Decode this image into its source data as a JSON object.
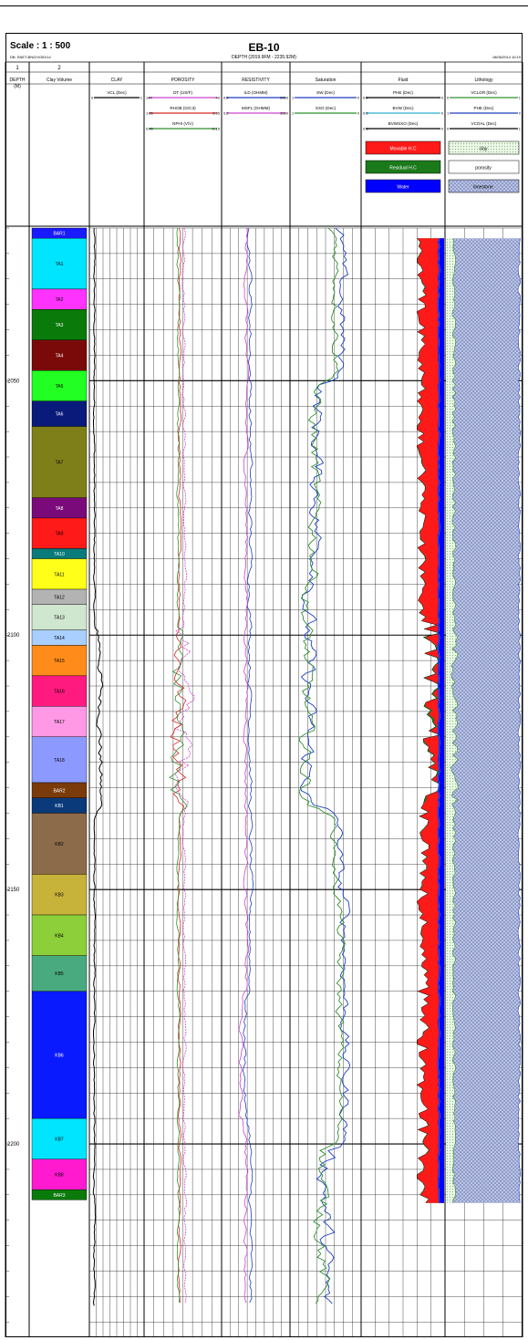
{
  "header": {
    "scale": "Scale : 1 : 500",
    "sub_left": "DB: SNET-BNG/VOID/14",
    "well": "EB-10",
    "depth_range": "DEPTH (2019.9FM - 2235.92M)",
    "date": "18/06/2014 10:19"
  },
  "tracks": [
    {
      "num": "1",
      "title": "DEPTH\n(M)"
    },
    {
      "num": "2",
      "title": "Clay Volume"
    },
    {
      "num": "",
      "title": "CLAY"
    },
    {
      "num": "",
      "title": "POROSITY"
    },
    {
      "num": "",
      "title": "RESISTIVITY"
    },
    {
      "num": "",
      "title": "Saturation"
    },
    {
      "num": "",
      "title": "Fluid"
    },
    {
      "num": "",
      "title": "Lithology"
    }
  ],
  "curves": {
    "clay": [
      {
        "label": "VCL (Dec)",
        "left": "0",
        "right": "1",
        "color": "#000000"
      }
    ],
    "porosity": [
      {
        "label": "DT (US/F)",
        "left": "140",
        "right": "40",
        "color": "#cc44cc"
      },
      {
        "label": "RHOB (G/C3)",
        "left": "1.95",
        "right": "2.95",
        "color": "#d62828"
      },
      {
        "label": "NPHI (V/V)",
        "left": "0.45",
        "right": "-0.15",
        "color": "#2f8f2f"
      }
    ],
    "resistivity": [
      {
        "label": "ILD (OHMM)",
        "left": "0.2",
        "right": "2000",
        "color": "#1f3fbf"
      },
      {
        "label": "MSFL (OHMM)",
        "left": "0.2",
        "right": "2000",
        "color": "#cc44cc"
      }
    ],
    "saturation": [
      {
        "label": "SW (Dec)",
        "left": "1",
        "right": "0",
        "color": "#1f3fbf"
      },
      {
        "label": "SXO (Dec)",
        "left": "1",
        "right": "0",
        "color": "#2f8f2f"
      }
    ],
    "fluid": [
      {
        "label": "PHE (Dec)",
        "left": "0.5",
        "right": "0",
        "color": "#000000"
      },
      {
        "label": "BVW (Dec)",
        "left": "0.5",
        "right": "0",
        "color": "#2ab0d0"
      },
      {
        "label": "BVWSXO (Dec)",
        "left": "0.5",
        "right": "0",
        "color": "#000000"
      }
    ],
    "lithology": [
      {
        "label": "VCLGR (Dec)",
        "left": "0",
        "right": "1",
        "color": "#2f8f2f"
      },
      {
        "label": "PHE (Dec)",
        "left": "1",
        "right": "0",
        "color": "#1f3fbf"
      },
      {
        "label": "VCOAL (Dec)",
        "left": "0",
        "right": "1",
        "color": "#000000"
      }
    ]
  },
  "fluid_legend": [
    {
      "label": "Movable H.C",
      "color": "#ff1a1a"
    },
    {
      "label": "Residual H.C",
      "color": "#1a7a1a"
    },
    {
      "label": "Water",
      "color": "#0000ff"
    }
  ],
  "lithology_legend": [
    {
      "label": "clay",
      "fill": "#d9ecd2"
    },
    {
      "label": "porosity",
      "fill": "#ffffff"
    },
    {
      "label": "limestone",
      "fill": "#8f9ccc"
    }
  ],
  "chart_data": {
    "type": "well-log",
    "depth_unit": "M",
    "depth_ticks": [
      2050,
      2100,
      2150,
      2200
    ],
    "depth_range": [
      2020,
      2238
    ],
    "zones": [
      {
        "name": "BAR1",
        "top": 2020,
        "base": 2022,
        "color": "#1a1aff"
      },
      {
        "name": "TA1",
        "top": 2022,
        "base": 2032,
        "color": "#00e5ff"
      },
      {
        "name": "TA2",
        "top": 2032,
        "base": 2036,
        "color": "#ff33ff"
      },
      {
        "name": "TA3",
        "top": 2036,
        "base": 2042,
        "color": "#0a7a0a"
      },
      {
        "name": "TA4",
        "top": 2042,
        "base": 2048,
        "color": "#7a0a0a"
      },
      {
        "name": "TA5",
        "top": 2048,
        "base": 2054,
        "color": "#22ff22"
      },
      {
        "name": "TA6",
        "top": 2054,
        "base": 2059,
        "color": "#0a1a7a"
      },
      {
        "name": "TA7",
        "top": 2059,
        "base": 2073,
        "color": "#7f7f1a"
      },
      {
        "name": "TA8",
        "top": 2073,
        "base": 2077,
        "color": "#7a0a7a"
      },
      {
        "name": "TA9",
        "top": 2077,
        "base": 2083,
        "color": "#ff1a1a"
      },
      {
        "name": "TA10",
        "top": 2083,
        "base": 2085,
        "color": "#0a7a7a"
      },
      {
        "name": "TA11",
        "top": 2085,
        "base": 2091,
        "color": "#ffff1a"
      },
      {
        "name": "TA12",
        "top": 2091,
        "base": 2094,
        "color": "#b3b3b3"
      },
      {
        "name": "TA13",
        "top": 2094,
        "base": 2099,
        "color": "#cfe6cf"
      },
      {
        "name": "TA14",
        "top": 2099,
        "base": 2102,
        "color": "#a8cfff"
      },
      {
        "name": "TA15",
        "top": 2102,
        "base": 2108,
        "color": "#ff8c1a"
      },
      {
        "name": "TA16",
        "top": 2108,
        "base": 2114,
        "color": "#ff1a7f"
      },
      {
        "name": "TA17",
        "top": 2114,
        "base": 2120,
        "color": "#ff99e6"
      },
      {
        "name": "TA18",
        "top": 2120,
        "base": 2129,
        "color": "#8c99ff"
      },
      {
        "name": "BAR2",
        "top": 2129,
        "base": 2132,
        "color": "#7a3a0a"
      },
      {
        "name": "KB1",
        "top": 2132,
        "base": 2135,
        "color": "#0a3a7a"
      },
      {
        "name": "KB2",
        "top": 2135,
        "base": 2147,
        "color": "#8c6b4a"
      },
      {
        "name": "KB3",
        "top": 2147,
        "base": 2155,
        "color": "#c8b33a"
      },
      {
        "name": "KB4",
        "top": 2155,
        "base": 2163,
        "color": "#8ccf3a"
      },
      {
        "name": "KB5",
        "top": 2163,
        "base": 2170,
        "color": "#4aaa7f"
      },
      {
        "name": "KB6",
        "top": 2170,
        "base": 2195,
        "color": "#0a1aff"
      },
      {
        "name": "KB7",
        "top": 2195,
        "base": 2203,
        "color": "#00e5ff"
      },
      {
        "name": "KB8",
        "top": 2203,
        "base": 2209,
        "color": "#ff1acf"
      },
      {
        "name": "BAR3",
        "top": 2209,
        "base": 2211,
        "color": "#0a7a0a"
      }
    ]
  }
}
